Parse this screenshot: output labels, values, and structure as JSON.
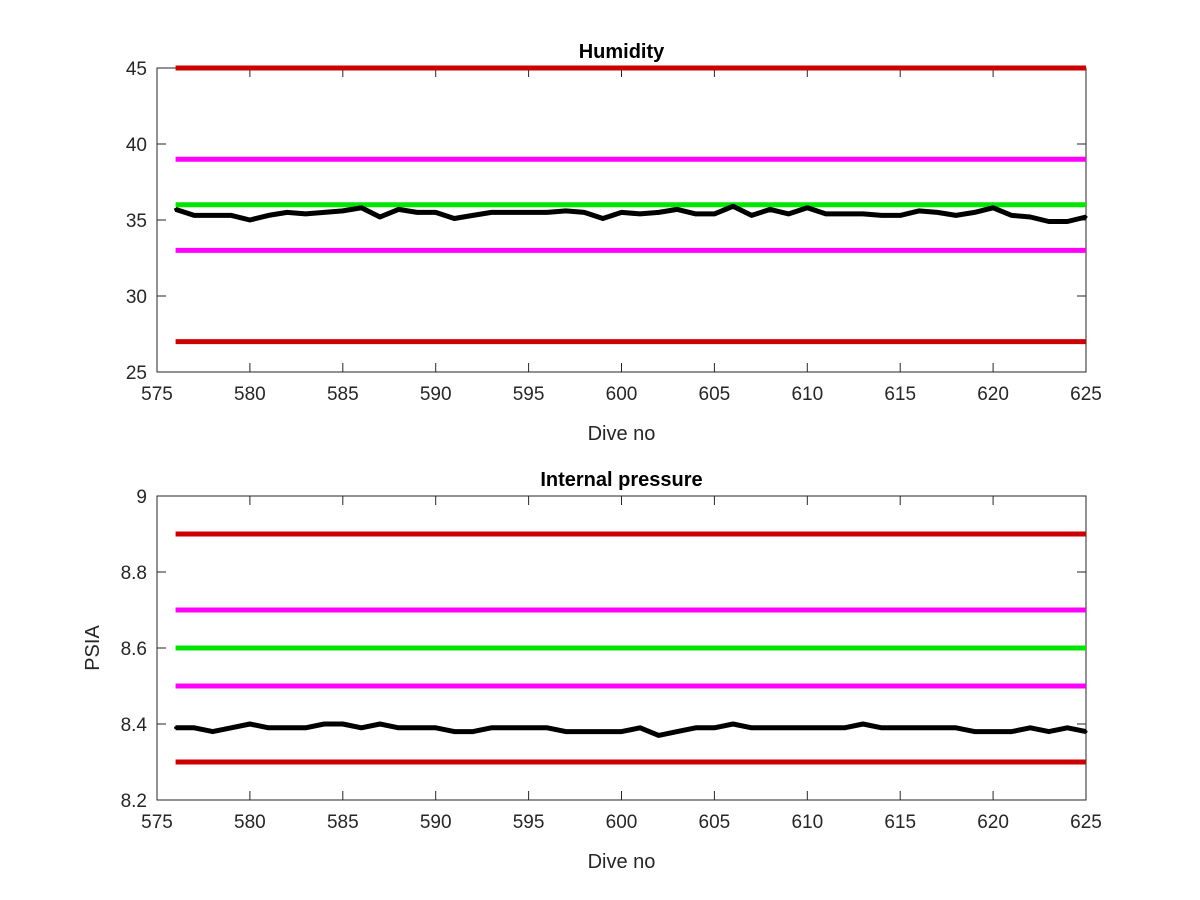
{
  "chart_data": [
    {
      "type": "line",
      "title": "Humidity",
      "xlabel": "Dive no",
      "ylabel": "",
      "xlim": [
        575,
        625
      ],
      "ylim": [
        25,
        45
      ],
      "xticks": [
        575,
        580,
        585,
        590,
        595,
        600,
        605,
        610,
        615,
        620,
        625
      ],
      "yticks": [
        25,
        30,
        35,
        40,
        45
      ],
      "grid": false,
      "reference_lines": [
        {
          "y": 45,
          "color": "#cc0000"
        },
        {
          "y": 39,
          "color": "#ff00ff"
        },
        {
          "y": 36,
          "color": "#00e600"
        },
        {
          "y": 33,
          "color": "#ff00ff"
        },
        {
          "y": 27,
          "color": "#cc0000"
        }
      ],
      "series": [
        {
          "color": "#000000",
          "x": [
            576,
            577,
            578,
            579,
            580,
            581,
            582,
            583,
            584,
            585,
            586,
            587,
            588,
            589,
            590,
            591,
            592,
            593,
            594,
            595,
            596,
            597,
            598,
            599,
            600,
            601,
            602,
            603,
            604,
            605,
            606,
            607,
            608,
            609,
            610,
            611,
            612,
            613,
            614,
            615,
            616,
            617,
            618,
            619,
            620,
            621,
            622,
            623,
            624,
            625
          ],
          "y": [
            35.7,
            35.3,
            35.3,
            35.3,
            35.0,
            35.3,
            35.5,
            35.4,
            35.5,
            35.6,
            35.8,
            35.2,
            35.7,
            35.5,
            35.5,
            35.1,
            35.3,
            35.5,
            35.5,
            35.5,
            35.5,
            35.6,
            35.5,
            35.1,
            35.5,
            35.4,
            35.5,
            35.7,
            35.4,
            35.4,
            35.9,
            35.3,
            35.7,
            35.4,
            35.8,
            35.4,
            35.4,
            35.4,
            35.3,
            35.3,
            35.6,
            35.5,
            35.3,
            35.5,
            35.8,
            35.3,
            35.2,
            34.9,
            34.9,
            35.2
          ]
        }
      ]
    },
    {
      "type": "line",
      "title": "Internal pressure",
      "xlabel": "Dive no",
      "ylabel": "PSIA",
      "xlim": [
        575,
        625
      ],
      "ylim": [
        8.2,
        9
      ],
      "xticks": [
        575,
        580,
        585,
        590,
        595,
        600,
        605,
        610,
        615,
        620,
        625
      ],
      "yticks": [
        "8.2",
        "8.4",
        "8.6",
        "8.8",
        "9"
      ],
      "grid": false,
      "reference_lines": [
        {
          "y": 8.9,
          "color": "#cc0000"
        },
        {
          "y": 8.7,
          "color": "#ff00ff"
        },
        {
          "y": 8.6,
          "color": "#00e600"
        },
        {
          "y": 8.5,
          "color": "#ff00ff"
        },
        {
          "y": 8.3,
          "color": "#cc0000"
        }
      ],
      "series": [
        {
          "color": "#000000",
          "x": [
            576,
            577,
            578,
            579,
            580,
            581,
            582,
            583,
            584,
            585,
            586,
            587,
            588,
            589,
            590,
            591,
            592,
            593,
            594,
            595,
            596,
            597,
            598,
            599,
            600,
            601,
            602,
            603,
            604,
            605,
            606,
            607,
            608,
            609,
            610,
            611,
            612,
            613,
            614,
            615,
            616,
            617,
            618,
            619,
            620,
            621,
            622,
            623,
            624,
            625
          ],
          "y": [
            8.39,
            8.39,
            8.38,
            8.39,
            8.4,
            8.39,
            8.39,
            8.39,
            8.4,
            8.4,
            8.39,
            8.4,
            8.39,
            8.39,
            8.39,
            8.38,
            8.38,
            8.39,
            8.39,
            8.39,
            8.39,
            8.38,
            8.38,
            8.38,
            8.38,
            8.39,
            8.37,
            8.38,
            8.39,
            8.39,
            8.4,
            8.39,
            8.39,
            8.39,
            8.39,
            8.39,
            8.39,
            8.4,
            8.39,
            8.39,
            8.39,
            8.39,
            8.39,
            8.38,
            8.38,
            8.38,
            8.39,
            8.38,
            8.39,
            8.38
          ]
        }
      ]
    }
  ]
}
